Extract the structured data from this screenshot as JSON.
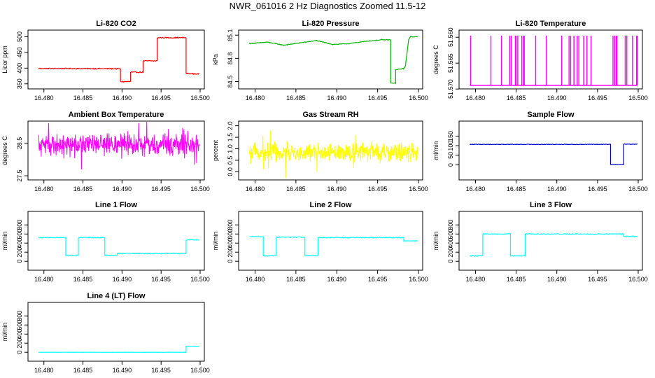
{
  "page_title": "NWR_061016  2 Hz Diagnostics Zoomed 11.5-12",
  "chart_data": [
    {
      "type": "line",
      "title": "Li-820 CO2",
      "ylabel": "Licor ppm",
      "color": "#ff0000",
      "xlim": [
        16.4785,
        16.5
      ],
      "ylim": [
        345,
        510
      ],
      "xticks": [
        16.48,
        16.485,
        16.49,
        16.495,
        16.5
      ],
      "xtick_labels": [
        "16.480",
        "16.485",
        "16.490",
        "16.495",
        "16.500"
      ],
      "yticks": [
        350,
        400,
        450,
        500
      ],
      "ytick_labels": [
        "350",
        "400",
        "450",
        "500"
      ],
      "noise": 1.5,
      "x": [
        16.4793,
        16.4898,
        16.4898,
        16.4911,
        16.4911,
        16.4927,
        16.4927,
        16.4945,
        16.4945,
        16.4982,
        16.4982,
        16.4999
      ],
      "y": [
        399,
        398,
        357,
        357,
        387,
        387,
        423,
        423,
        497,
        497,
        383,
        381
      ]
    },
    {
      "type": "line",
      "title": "Li-820 Pressure",
      "ylabel": "kPa",
      "color": "#00b400",
      "xlim": [
        16.4785,
        16.5
      ],
      "ylim": [
        84.45,
        85.12
      ],
      "xticks": [
        16.48,
        16.485,
        16.49,
        16.495,
        16.5
      ],
      "xtick_labels": [
        "16.480",
        "16.485",
        "16.490",
        "16.495",
        "16.500"
      ],
      "yticks": [
        84.5,
        84.8,
        85.1
      ],
      "ytick_labels": [
        "84.5",
        "84.8",
        "85.1"
      ],
      "noise": 0.004,
      "x": [
        16.4793,
        16.4815,
        16.4835,
        16.4855,
        16.4875,
        16.4895,
        16.4915,
        16.4935,
        16.4955,
        16.4966,
        16.4966,
        16.4972,
        16.4972,
        16.4982,
        16.4984,
        16.4988,
        16.499,
        16.4999
      ],
      "y": [
        84.99,
        85.01,
        84.97,
        85.0,
        85.03,
        84.98,
        84.99,
        85.02,
        85.04,
        85.04,
        84.48,
        84.48,
        84.65,
        84.67,
        84.7,
        85.04,
        85.08,
        85.08
      ]
    },
    {
      "type": "spikes",
      "title": "Li-820 Temperature",
      "ylabel": "degrees C",
      "color": "#ff00ff",
      "xlim": [
        16.4785,
        16.5
      ],
      "ylim": [
        51.5693,
        51.5593
      ],
      "xticks": [
        16.48,
        16.485,
        16.49,
        16.495,
        16.5
      ],
      "xtick_labels": [
        "16.480",
        "16.485",
        "16.490",
        "16.495",
        "16.500"
      ],
      "yticks": [
        51.57,
        51.565,
        51.56
      ],
      "ytick_labels": [
        "51.570",
        "51.565",
        "51.560"
      ],
      "baseline": 51.5693,
      "peak": 51.5597,
      "spikes_x": [
        16.4794,
        16.4819,
        16.4832,
        16.4842,
        16.4844,
        16.4849,
        16.485,
        16.4852,
        16.4857,
        16.4859,
        16.486,
        16.4874,
        16.4887,
        16.4906,
        16.4915,
        16.4917,
        16.4921,
        16.4925,
        16.4927,
        16.4933,
        16.4937,
        16.4942,
        16.4969,
        16.4971,
        16.4973,
        16.4974,
        16.4984,
        16.4986,
        16.4993,
        16.4998,
        16.4999
      ]
    },
    {
      "type": "noise",
      "title": "Ambient Box Temperature",
      "ylabel": "degrees C",
      "color": "#ff00ff",
      "xlim": [
        16.4785,
        16.5
      ],
      "ylim": [
        27.48,
        29.07
      ],
      "xticks": [
        16.48,
        16.485,
        16.49,
        16.495,
        16.5
      ],
      "xtick_labels": [
        "16.480",
        "16.485",
        "16.490",
        "16.495",
        "16.500"
      ],
      "yticks": [
        27.5,
        28.5
      ],
      "ytick_labels": [
        "27.5",
        "28.5"
      ],
      "x_range": [
        16.4793,
        16.4999
      ],
      "center": 28.45,
      "amplitude": 0.3,
      "spike": 0.45
    },
    {
      "type": "noise",
      "title": "Gas Stream RH",
      "ylabel": "percent",
      "color": "#ffff00",
      "xlim": [
        16.4785,
        16.5
      ],
      "ylim": [
        -0.2,
        2.05
      ],
      "xticks": [
        16.48,
        16.485,
        16.49,
        16.495,
        16.5
      ],
      "xtick_labels": [
        "16.480",
        "16.485",
        "16.490",
        "16.495",
        "16.500"
      ],
      "yticks": [
        0.0,
        0.5,
        1.0,
        1.5,
        2.0
      ],
      "ytick_labels": [
        "0.0",
        "0.5",
        "1.0",
        "1.5",
        "2.0"
      ],
      "x_range": [
        16.4793,
        16.4999
      ],
      "center": 0.85,
      "amplitude": 0.35,
      "spike": 0.8
    },
    {
      "type": "line",
      "title": "Sample Flow",
      "ylabel": "ml/min",
      "color": "#0000cd",
      "xlim": [
        16.4785,
        16.5
      ],
      "ylim": [
        -60,
        210
      ],
      "xticks": [
        16.48,
        16.485,
        16.49,
        16.495,
        16.5
      ],
      "xtick_labels": [
        "16.480",
        "16.485",
        "16.490",
        "16.495",
        "16.500"
      ],
      "yticks": [
        0,
        50,
        100,
        150
      ],
      "ytick_labels": [
        "0",
        "50",
        "100",
        "150"
      ],
      "noise": 1.2,
      "x": [
        16.4793,
        16.4966,
        16.4966,
        16.4982,
        16.4982,
        16.4999
      ],
      "y": [
        107,
        107,
        2,
        2,
        108,
        108
      ]
    },
    {
      "type": "line",
      "title": "Line 1 Flow",
      "ylabel": "ml/min",
      "color": "#00ffff",
      "xlim": [
        16.4785,
        16.5
      ],
      "ylim": [
        -120,
        1020
      ],
      "xticks": [
        16.48,
        16.485,
        16.49,
        16.495,
        16.5
      ],
      "xtick_labels": [
        "16.480",
        "16.485",
        "16.490",
        "16.495",
        "16.500"
      ],
      "yticks": [
        0,
        200,
        400,
        600,
        800
      ],
      "ytick_labels": [
        "0",
        "200",
        "400",
        "600",
        "800"
      ],
      "noise": 8,
      "x": [
        16.4793,
        16.4828,
        16.4828,
        16.4844,
        16.4844,
        16.4878,
        16.4878,
        16.4894,
        16.4894,
        16.4982,
        16.4982,
        16.4999
      ],
      "y": [
        520,
        520,
        130,
        130,
        520,
        520,
        130,
        130,
        170,
        170,
        470,
        470
      ]
    },
    {
      "type": "line",
      "title": "Line 2 Flow",
      "ylabel": "ml/min",
      "color": "#00ffff",
      "xlim": [
        16.4785,
        16.5
      ],
      "ylim": [
        -120,
        1020
      ],
      "xticks": [
        16.48,
        16.485,
        16.49,
        16.495,
        16.5
      ],
      "xtick_labels": [
        "16.480",
        "16.485",
        "16.490",
        "16.495",
        "16.500"
      ],
      "yticks": [
        0,
        200,
        400,
        600,
        800
      ],
      "ytick_labels": [
        "0",
        "200",
        "400",
        "600",
        "800"
      ],
      "noise": 8,
      "x": [
        16.4793,
        16.481,
        16.481,
        16.4826,
        16.4826,
        16.4861,
        16.4861,
        16.4877,
        16.4877,
        16.4982,
        16.4982,
        16.4999
      ],
      "y": [
        540,
        540,
        120,
        120,
        530,
        530,
        120,
        120,
        520,
        520,
        450,
        450
      ]
    },
    {
      "type": "line",
      "title": "Line 3 Flow",
      "ylabel": "ml/min",
      "color": "#00ffff",
      "xlim": [
        16.4785,
        16.5
      ],
      "ylim": [
        -120,
        1020
      ],
      "xticks": [
        16.48,
        16.485,
        16.49,
        16.495,
        16.5
      ],
      "xtick_labels": [
        "16.480",
        "16.485",
        "16.490",
        "16.495",
        "16.500"
      ],
      "yticks": [
        0,
        200,
        400,
        600,
        800
      ],
      "ytick_labels": [
        "0",
        "200",
        "400",
        "600",
        "800"
      ],
      "noise": 9,
      "x": [
        16.4793,
        16.4809,
        16.4809,
        16.4843,
        16.4843,
        16.4861,
        16.4861,
        16.4982,
        16.4982,
        16.4999
      ],
      "y": [
        120,
        120,
        600,
        600,
        120,
        120,
        600,
        600,
        550,
        550
      ]
    },
    {
      "type": "line",
      "title": "Line 4 (LT) Flow",
      "ylabel": "ml/min",
      "color": "#00ffff",
      "xlim": [
        16.4785,
        16.5
      ],
      "ylim": [
        -120,
        1020
      ],
      "xticks": [
        16.48,
        16.485,
        16.49,
        16.495,
        16.5
      ],
      "xtick_labels": [
        "16.480",
        "16.485",
        "16.490",
        "16.495",
        "16.500"
      ],
      "yticks": [
        0,
        200,
        400,
        600,
        800
      ],
      "ytick_labels": [
        "0",
        "200",
        "400",
        "600",
        "800"
      ],
      "noise": 2,
      "x": [
        16.4793,
        16.4982,
        16.4982,
        16.4999
      ],
      "y": [
        0,
        0,
        130,
        130
      ]
    }
  ]
}
